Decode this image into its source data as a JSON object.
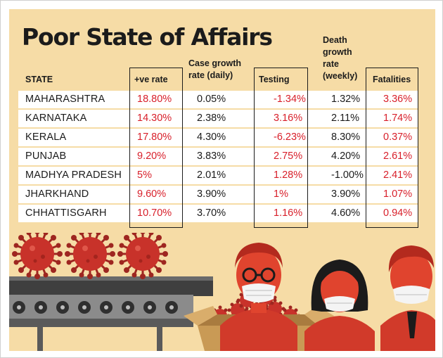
{
  "title": "Poor State of Affairs",
  "columns": {
    "state": "STATE",
    "positive_rate": "+ve rate",
    "case_growth_line1": "Case growth",
    "case_growth_line2": "rate (daily)",
    "testing": "Testing",
    "death_growth_line1": "Death",
    "death_growth_line2": "growth",
    "death_growth_line3": "rate",
    "death_growth_line4": "(weekly)",
    "fatalities": "Fatalities"
  },
  "rows": [
    {
      "state": "MAHARASHTRA",
      "positive_rate": "18.80%",
      "case_growth": "0.05%",
      "testing": "-1.34%",
      "death_growth": "1.32%",
      "fatalities": "3.36%"
    },
    {
      "state": "KARNATAKA",
      "positive_rate": "14.30%",
      "case_growth": "2.38%",
      "testing": "3.16%",
      "death_growth": "2.11%",
      "fatalities": "1.74%"
    },
    {
      "state": "KERALA",
      "positive_rate": "17.80%",
      "case_growth": "4.30%",
      "testing": "-6.23%",
      "death_growth": "8.30%",
      "fatalities": "0.37%"
    },
    {
      "state": "PUNJAB",
      "positive_rate": "9.20%",
      "case_growth": "3.83%",
      "testing": "2.75%",
      "death_growth": "4.20%",
      "fatalities": "2.61%"
    },
    {
      "state": "MADHYA PRADESH",
      "positive_rate": "5%",
      "case_growth": "2.01%",
      "testing": "1.28%",
      "death_growth": "-1.00%",
      "fatalities": "2.41%"
    },
    {
      "state": "JHARKHAND",
      "positive_rate": "9.60%",
      "case_growth": "3.90%",
      "testing": "1%",
      "death_growth": "3.90%",
      "fatalities": "1.07%"
    },
    {
      "state": "CHHATTISGARH",
      "positive_rate": "10.70%",
      "case_growth": "3.70%",
      "testing": "1.16%",
      "death_growth": "4.60%",
      "fatalities": "0.94%"
    }
  ],
  "colors": {
    "background": "#f6dca6",
    "highlight_red": "#d81f2a",
    "text_dark": "#1b1b1b",
    "virus_red": "#c8322a",
    "conveyor_dark": "#4a4a4a",
    "box_brown": "#c99a55",
    "face_red": "#e0442e"
  },
  "icons": [
    "virus-icon",
    "conveyor-belt-illustration",
    "cardboard-box-illustration",
    "masked-person-illustration"
  ]
}
